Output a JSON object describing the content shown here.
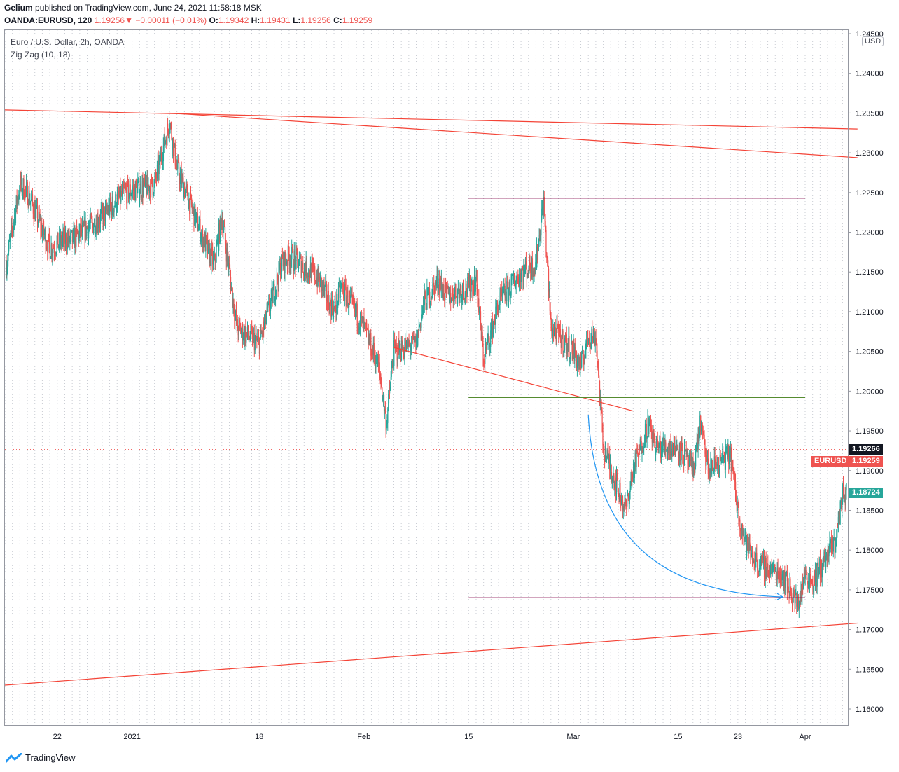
{
  "header": {
    "author": "Gelium",
    "published_text": " published on TradingView.com, June 24, 2021 11:58:18 MSK",
    "symbol": "OANDA:EURUSD, 120",
    "last_price": "1.19256",
    "arrow": "▼",
    "change": "−0.00011 (−0.01%)",
    "o_label": "O:",
    "o_value": "1.19342",
    "h_label": "H:",
    "h_value": "1.19431",
    "l_label": "L:",
    "l_value": "1.19256",
    "c_label": "C:",
    "c_value": "1.19259"
  },
  "legend": {
    "instrument": "Euro / U.S. Dollar, 2h, OANDA",
    "indicator": "Zig Zag (10, 18)"
  },
  "currency_badge": "USD",
  "price_tags": {
    "crosshair": "1.19266",
    "symbol_label": "EURUSD",
    "symbol_price": "1.19259",
    "teal_price": "1.18724"
  },
  "footer": {
    "brand": "TradingView"
  },
  "colors": {
    "trend_line": "#f44336",
    "level_line": "#880e4f",
    "neckline": "#558b2f",
    "arrow": "#2196f3",
    "candle_up": "#26a69a",
    "candle_down": "#ef5350"
  },
  "chart_data": {
    "type": "candlestick",
    "x_ticks": [
      "22",
      "2021",
      "18",
      "Feb",
      "15",
      "Mar",
      "15",
      "23",
      "Apr"
    ],
    "y_ticks": [
      "1.24500",
      "1.24000",
      "1.23500",
      "1.23000",
      "1.22500",
      "1.22000",
      "1.21500",
      "1.21000",
      "1.20500",
      "1.20000",
      "1.19500",
      "1.19000",
      "1.18500",
      "1.18000",
      "1.17500",
      "1.17000",
      "1.16500",
      "1.16000"
    ],
    "ylim": [
      1.1555,
      1.2435
    ],
    "grid": "vertical dotted",
    "close_path": [
      [
        "2020-12-15",
        1.215
      ],
      [
        "2020-12-17",
        1.226
      ],
      [
        "2020-12-18",
        1.225
      ],
      [
        "2020-12-21",
        1.218
      ],
      [
        "2020-12-23",
        1.219
      ],
      [
        "2020-12-24",
        1.219
      ],
      [
        "2020-12-28",
        1.222
      ],
      [
        "2020-12-31",
        1.225
      ],
      [
        "2021-01-04",
        1.226
      ],
      [
        "2021-01-06",
        1.234
      ],
      [
        "2021-01-07",
        1.228
      ],
      [
        "2021-01-11",
        1.218
      ],
      [
        "2021-01-12",
        1.216
      ],
      [
        "2021-01-13",
        1.222
      ],
      [
        "2021-01-15",
        1.208
      ],
      [
        "2021-01-18",
        1.206
      ],
      [
        "2021-01-21",
        1.216
      ],
      [
        "2021-01-22",
        1.217
      ],
      [
        "2021-01-25",
        1.215
      ],
      [
        "2021-01-26",
        1.214
      ],
      [
        "2021-01-28",
        1.21
      ],
      [
        "2021-01-29",
        1.213
      ],
      [
        "2021-02-01",
        1.208
      ],
      [
        "2021-02-03",
        1.203
      ],
      [
        "2021-02-04",
        1.196
      ],
      [
        "2021-02-05",
        1.205
      ],
      [
        "2021-02-08",
        1.206
      ],
      [
        "2021-02-09",
        1.211
      ],
      [
        "2021-02-11",
        1.214
      ],
      [
        "2021-02-12",
        1.212
      ],
      [
        "2021-02-15",
        1.213
      ],
      [
        "2021-02-16",
        1.214
      ],
      [
        "2021-02-17",
        1.204
      ],
      [
        "2021-02-19",
        1.211
      ],
      [
        "2021-02-22",
        1.215
      ],
      [
        "2021-02-24",
        1.216
      ],
      [
        "2021-02-25",
        1.224
      ],
      [
        "2021-02-26",
        1.208
      ],
      [
        "2021-03-01",
        1.205
      ],
      [
        "2021-03-02",
        1.203
      ],
      [
        "2021-03-03",
        1.207
      ],
      [
        "2021-03-04",
        1.207
      ],
      [
        "2021-03-05",
        1.193
      ],
      [
        "2021-03-08",
        1.185
      ],
      [
        "2021-03-09",
        1.19
      ],
      [
        "2021-03-11",
        1.196
      ],
      [
        "2021-03-12",
        1.193
      ],
      [
        "2021-03-15",
        1.193
      ],
      [
        "2021-03-17",
        1.19
      ],
      [
        "2021-03-18",
        1.196
      ],
      [
        "2021-03-19",
        1.19
      ],
      [
        "2021-03-22",
        1.192
      ],
      [
        "2021-03-23",
        1.185
      ],
      [
        "2021-03-24",
        1.181
      ],
      [
        "2021-03-25",
        1.179
      ],
      [
        "2021-03-26",
        1.178
      ],
      [
        "2021-03-29",
        1.177
      ],
      [
        "2021-03-31",
        1.173
      ],
      [
        "2021-04-01",
        1.177
      ],
      [
        "2021-04-02",
        1.176
      ],
      [
        "2021-04-05",
        1.181
      ],
      [
        "2021-04-06",
        1.187
      ]
    ],
    "drawings": {
      "upper_trendline_1": [
        [
          "2020-12-15",
          1.2354
        ],
        [
          "2021-04-08",
          1.233
        ]
      ],
      "upper_trendline_2": [
        [
          "2021-01-06",
          1.235
        ],
        [
          "2021-04-08",
          1.2294
        ]
      ],
      "lower_trendline": [
        [
          "2020-12-15",
          1.163
        ],
        [
          "2021-04-08",
          1.1708
        ]
      ],
      "falling_trendline": [
        [
          "2021-02-05",
          1.2055
        ],
        [
          "2021-03-09",
          1.1975
        ]
      ],
      "resistance_level": {
        "value": 1.2243,
        "from": "2021-02-15",
        "to": "2021-04-01"
      },
      "neckline_level": {
        "value": 1.1992,
        "from": "2021-02-15",
        "to": "2021-04-01"
      },
      "support_level": {
        "value": 1.174,
        "from": "2021-02-15",
        "to": "2021-04-01"
      },
      "curved_arrow": {
        "from": [
          "2021-03-03",
          1.197
        ],
        "to": [
          "2021-03-29",
          1.1741
        ]
      },
      "current_price_line": 1.19266
    }
  }
}
